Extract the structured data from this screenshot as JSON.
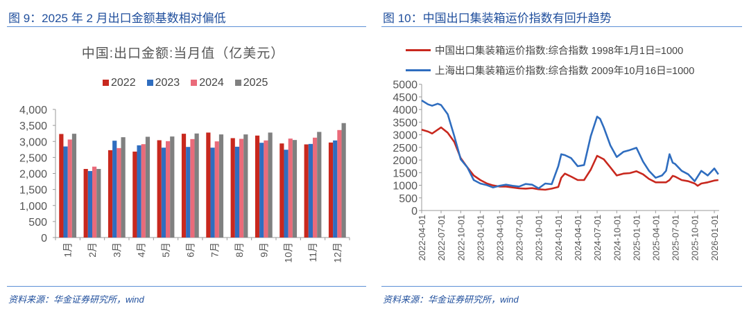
{
  "left": {
    "figure_title": "图 9：2025 年 2 月出口金额基数相对偏低",
    "source": "资料来源：华金证券研究所，wind"
  },
  "right": {
    "figure_title": "图 10：中国出口集装箱运价指数有回升趋势",
    "source": "资料来源：华金证券研究所，wind"
  },
  "chart_data": [
    {
      "type": "bar",
      "title": "中国:出口金额:当月值（亿美元）",
      "categories": [
        "1月",
        "2月",
        "3月",
        "4月",
        "5月",
        "6月",
        "7月",
        "8月",
        "9月",
        "10月",
        "11月",
        "12月"
      ],
      "ylim": [
        0,
        4000
      ],
      "yticks": [
        "0",
        "500",
        "1,000",
        "1,500",
        "2,000",
        "2,500",
        "3,000",
        "3,500",
        "4,000"
      ],
      "ytick_values": [
        0,
        500,
        1000,
        1500,
        2000,
        2500,
        3000,
        3500,
        4000
      ],
      "legend_position": "top",
      "grid": false,
      "series": [
        {
          "name": "2022",
          "color": "#c8281e",
          "values": [
            3233,
            2141,
            2727,
            2683,
            3038,
            3240,
            3277,
            3103,
            3183,
            2937,
            2908,
            2966
          ]
        },
        {
          "name": "2023",
          "color": "#2f6dbf",
          "values": [
            2843,
            2076,
            3023,
            2879,
            2806,
            2828,
            2806,
            2835,
            2958,
            2741,
            2922,
            3031
          ]
        },
        {
          "name": "2024",
          "color": "#ea6b7a",
          "values": [
            3060,
            2213,
            2792,
            2915,
            3009,
            3074,
            3002,
            3081,
            3031,
            3089,
            3118,
            3356
          ]
        },
        {
          "name": "2025",
          "color": "#808080",
          "values": [
            3240,
            2141,
            3132,
            3146,
            3154,
            3248,
            3219,
            3219,
            3277,
            3045,
            3298,
            3573
          ]
        }
      ]
    },
    {
      "type": "line",
      "title": "",
      "ylim": [
        0,
        5000
      ],
      "yticks": [
        "0",
        "500",
        "1000",
        "1500",
        "2000",
        "2500",
        "3000",
        "3500",
        "4000",
        "4500",
        "5000"
      ],
      "ytick_values": [
        0,
        500,
        1000,
        1500,
        2000,
        2500,
        3000,
        3500,
        4000,
        4500,
        5000
      ],
      "xticks": [
        "2022-04-01",
        "2022-07-01",
        "2022-10-01",
        "2023-01-01",
        "2023-04-01",
        "2023-07-01",
        "2023-10-01",
        "2024-01-01",
        "2024-04-01",
        "2024-07-01",
        "2024-10-01",
        "2025-01-01",
        "2025-04-01",
        "2025-07-01",
        "2025-10-01",
        "2026-01-01"
      ],
      "legend_position": "top",
      "grid": false,
      "series": [
        {
          "name": "中国出口集装箱运价指数:综合指数 1998年1月1日=1000",
          "color": "#c8281e",
          "x": [
            "2022-04-01",
            "2022-05-01",
            "2022-05-20",
            "2022-06-15",
            "2022-07-01",
            "2022-08-01",
            "2022-09-01",
            "2022-10-01",
            "2022-11-01",
            "2022-12-01",
            "2023-01-01",
            "2023-02-01",
            "2023-03-01",
            "2023-04-01",
            "2023-05-01",
            "2023-06-01",
            "2023-07-01",
            "2023-08-01",
            "2023-09-01",
            "2023-10-01",
            "2023-11-01",
            "2023-12-01",
            "2024-01-01",
            "2024-01-15",
            "2024-02-01",
            "2024-03-01",
            "2024-04-01",
            "2024-05-01",
            "2024-06-01",
            "2024-07-01",
            "2024-08-01",
            "2024-09-01",
            "2024-10-01",
            "2024-11-01",
            "2024-12-01",
            "2025-01-01",
            "2025-02-01",
            "2025-03-01",
            "2025-04-01",
            "2025-05-01",
            "2025-05-20",
            "2025-06-05",
            "2025-06-20",
            "2025-07-01",
            "2025-08-01",
            "2025-09-01",
            "2025-10-01",
            "2025-10-15",
            "2025-11-01",
            "2025-12-01",
            "2026-01-01",
            "2026-01-20"
          ],
          "values": [
            3200,
            3126,
            3050,
            3200,
            3290,
            3080,
            2715,
            2075,
            1709,
            1389,
            1206,
            1070,
            996,
            950,
            950,
            914,
            878,
            868,
            887,
            841,
            823,
            868,
            932,
            1298,
            1463,
            1344,
            1206,
            1206,
            1618,
            2166,
            2029,
            1709,
            1389,
            1463,
            1481,
            1554,
            1435,
            1252,
            1115,
            1115,
            1115,
            1206,
            1371,
            1344,
            1206,
            1161,
            1070,
            978,
            1070,
            1115,
            1188,
            1206
          ]
        },
        {
          "name": "上海出口集装箱运价指数:综合指数 2009年10月16日=1000",
          "color": "#2f6dbf",
          "x": [
            "2022-04-01",
            "2022-05-01",
            "2022-05-20",
            "2022-06-15",
            "2022-07-01",
            "2022-08-01",
            "2022-09-01",
            "2022-10-01",
            "2022-11-01",
            "2022-12-01",
            "2023-01-01",
            "2023-02-01",
            "2023-03-01",
            "2023-04-01",
            "2023-05-01",
            "2023-06-01",
            "2023-07-01",
            "2023-08-01",
            "2023-09-01",
            "2023-10-01",
            "2023-11-01",
            "2023-12-01",
            "2024-01-01",
            "2024-01-15",
            "2024-02-01",
            "2024-03-01",
            "2024-04-01",
            "2024-05-01",
            "2024-06-01",
            "2024-07-01",
            "2024-07-15",
            "2024-08-01",
            "2024-09-01",
            "2024-10-01",
            "2024-11-01",
            "2024-12-01",
            "2025-01-01",
            "2025-02-01",
            "2025-03-01",
            "2025-04-01",
            "2025-05-01",
            "2025-05-20",
            "2025-06-05",
            "2025-06-20",
            "2025-07-01",
            "2025-08-01",
            "2025-09-01",
            "2025-10-01",
            "2025-11-01",
            "2025-12-01",
            "2026-01-01",
            "2026-01-20"
          ],
          "values": [
            4360,
            4205,
            4150,
            4230,
            4177,
            3812,
            2943,
            2029,
            1709,
            1206,
            1070,
            1005,
            914,
            978,
            1024,
            978,
            950,
            1051,
            1024,
            878,
            1070,
            1042,
            1755,
            2230,
            2194,
            2075,
            1755,
            1801,
            2943,
            3720,
            3629,
            3291,
            2578,
            2121,
            2322,
            2395,
            2486,
            1938,
            1572,
            1298,
            1389,
            1572,
            2230,
            1892,
            1846,
            1572,
            1435,
            1161,
            1572,
            1389,
            1664,
            1435
          ]
        }
      ]
    }
  ]
}
